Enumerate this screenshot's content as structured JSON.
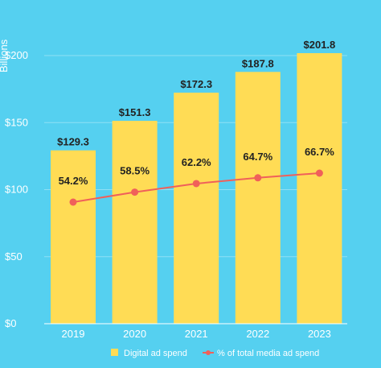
{
  "chart_data": {
    "type": "bar",
    "ylabel": "Billions",
    "ylim": [
      0,
      200
    ],
    "yticks": [
      "$0",
      "$50",
      "$100",
      "$150",
      "$200"
    ],
    "ytick_values": [
      0,
      50,
      100,
      150,
      200
    ],
    "categories": [
      "2019",
      "2020",
      "2021",
      "2022",
      "2023"
    ],
    "series": [
      {
        "name": "Digital ad spend",
        "type": "bar",
        "values": [
          129.3,
          151.3,
          172.3,
          187.8,
          201.8
        ],
        "labels": [
          "$129.3",
          "$151.3",
          "$172.3",
          "$187.8",
          "$201.8"
        ],
        "color": "#ffdc55"
      },
      {
        "name": "% of total media ad spend",
        "type": "line",
        "values": [
          54.2,
          58.5,
          62.2,
          64.7,
          66.7
        ],
        "labels": [
          "54.2%",
          "58.5%",
          "62.2%",
          "64.7%",
          "66.7%"
        ],
        "color": "#f0605a"
      }
    ],
    "grid": true,
    "legend_position": "bottom"
  },
  "colors": {
    "background": "#55d0f0",
    "gridline": "#8fe0f5",
    "bar": "#ffdc55",
    "line": "#f0605a"
  }
}
